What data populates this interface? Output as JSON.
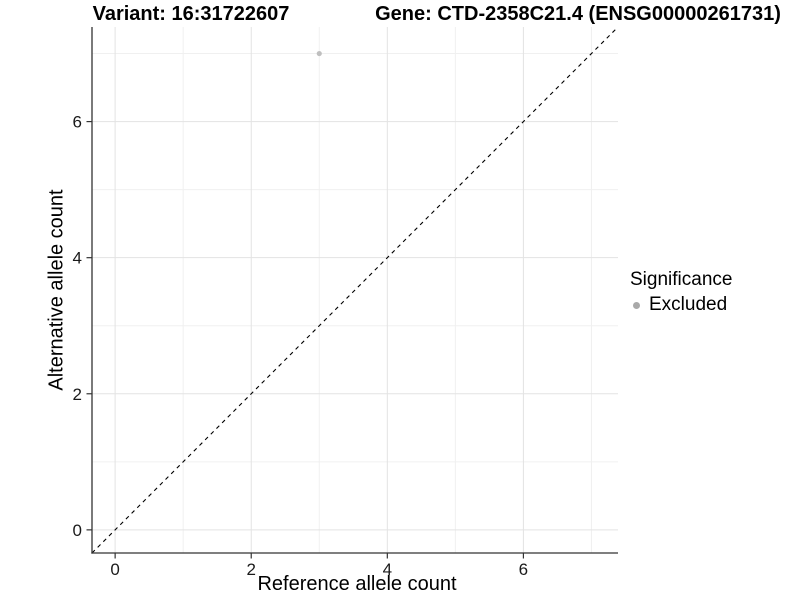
{
  "header": {
    "title_left": "Variant: 16:31722607",
    "title_right": "Gene: CTD-2358C21.4 (ENSG00000261731)"
  },
  "chart_data": {
    "type": "scatter",
    "xlabel": "Reference allele count",
    "ylabel": "Alternative allele count",
    "xlim": [
      -0.34,
      7.39
    ],
    "ylim": [
      -0.34,
      7.39
    ],
    "xticks": [
      0,
      2,
      4,
      6
    ],
    "yticks": [
      0,
      2,
      4,
      6
    ],
    "x_minor": [
      1,
      3,
      5,
      7
    ],
    "y_minor": [
      1,
      3,
      5,
      7
    ],
    "grid": true,
    "series": [
      {
        "name": "Excluded",
        "color": "#bfbfbf",
        "point_radius": 2.6,
        "points": [
          {
            "x": 3,
            "y": 7
          }
        ]
      }
    ],
    "identity_line": {
      "slope": 1,
      "intercept": 0,
      "style": "dashed",
      "color": "#000000"
    },
    "legend": {
      "title": "Significance",
      "position": "right",
      "entries": [
        {
          "label": "Excluded",
          "color": "#a9a9a9"
        }
      ]
    },
    "colors": {
      "grid_major": "#e3e3e3",
      "grid_minor": "#f0f0f0",
      "axis": "#333333",
      "tick_text": "#1a1a1a"
    },
    "tick_font_size": 17
  }
}
